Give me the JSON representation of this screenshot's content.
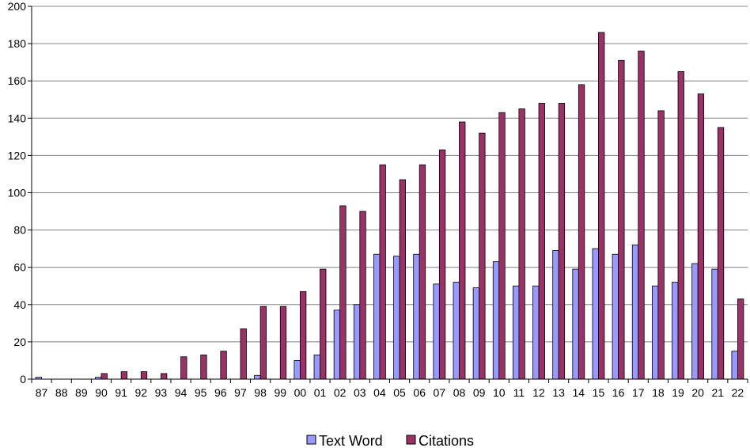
{
  "chart_data": {
    "type": "bar",
    "categories": [
      "87",
      "88",
      "89",
      "90",
      "91",
      "92",
      "93",
      "94",
      "95",
      "96",
      "97",
      "98",
      "99",
      "00",
      "01",
      "02",
      "03",
      "04",
      "05",
      "06",
      "07",
      "08",
      "09",
      "10",
      "11",
      "12",
      "13",
      "14",
      "15",
      "16",
      "17",
      "18",
      "19",
      "20",
      "21",
      "22"
    ],
    "series": [
      {
        "name": "Text Word",
        "color": "#9999ff",
        "values": [
          1,
          0,
          0,
          1,
          0,
          0,
          0,
          0,
          0,
          0,
          0,
          2,
          0,
          10,
          13,
          37,
          40,
          67,
          66,
          67,
          51,
          52,
          49,
          63,
          50,
          50,
          69,
          59,
          70,
          67,
          72,
          50,
          52,
          62,
          59,
          15
        ]
      },
      {
        "name": "Citations",
        "color": "#993366",
        "values": [
          0,
          0,
          0,
          3,
          4,
          4,
          3,
          12,
          13,
          15,
          27,
          39,
          39,
          47,
          59,
          93,
          90,
          115,
          107,
          115,
          123,
          138,
          132,
          143,
          145,
          148,
          148,
          158,
          186,
          171,
          176,
          144,
          165,
          153,
          135,
          43
        ]
      }
    ],
    "ylim": [
      0,
      200
    ],
    "yticks": [
      "0",
      "20",
      "40",
      "60",
      "80",
      "100",
      "120",
      "140",
      "160",
      "180",
      "200"
    ],
    "grid": true,
    "legend_position": "bottom-center",
    "title": "",
    "xlabel": "",
    "ylabel": ""
  }
}
